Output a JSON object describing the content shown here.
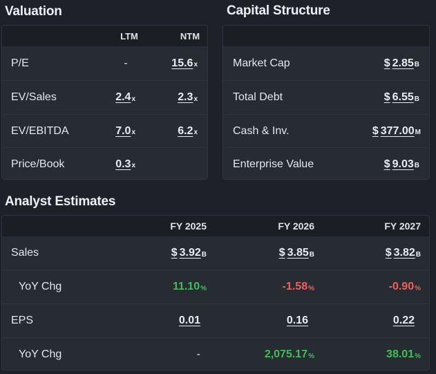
{
  "valuation": {
    "title": "Valuation",
    "col_ltm": "LTM",
    "col_ntm": "NTM",
    "rows": [
      {
        "label": "P/E",
        "ltm": "-",
        "ltm_suffix": "",
        "ntm": "15.6",
        "ntm_suffix": "x"
      },
      {
        "label": "EV/Sales",
        "ltm": "2.4",
        "ltm_suffix": "x",
        "ntm": "2.3",
        "ntm_suffix": "x"
      },
      {
        "label": "EV/EBITDA",
        "ltm": "7.0",
        "ltm_suffix": "x",
        "ntm": "6.2",
        "ntm_suffix": "x"
      },
      {
        "label": "Price/Book",
        "ltm": "0.3",
        "ltm_suffix": "x",
        "ntm": "",
        "ntm_suffix": ""
      }
    ]
  },
  "capital": {
    "title": "Capital Structure",
    "rows": [
      {
        "label": "Market Cap",
        "currency": "$",
        "value": "2.85",
        "suffix": "B"
      },
      {
        "label": "Total Debt",
        "currency": "$",
        "value": "6.55",
        "suffix": "B"
      },
      {
        "label": "Cash & Inv.",
        "currency": "$",
        "value": "377.00",
        "suffix": "M"
      },
      {
        "label": "Enterprise Value",
        "currency": "$",
        "value": "9.03",
        "suffix": "B"
      }
    ]
  },
  "analyst": {
    "title": "Analyst Estimates",
    "cols": [
      "FY 2025",
      "FY 2026",
      "FY 2027"
    ],
    "sales_label": "Sales",
    "sales": [
      {
        "currency": "$",
        "value": "3.92",
        "suffix": "B"
      },
      {
        "currency": "$",
        "value": "3.85",
        "suffix": "B"
      },
      {
        "currency": "$",
        "value": "3.82",
        "suffix": "B"
      }
    ],
    "sales_yoy_label": "YoY Chg",
    "sales_yoy": [
      {
        "value": "11.10",
        "suffix": "%",
        "tone": "positive"
      },
      {
        "value": "-1.58",
        "suffix": "%",
        "tone": "negative"
      },
      {
        "value": "-0.90",
        "suffix": "%",
        "tone": "negative"
      }
    ],
    "eps_label": "EPS",
    "eps": [
      "0.01",
      "0.16",
      "0.22"
    ],
    "eps_yoy_label": "YoY Chg",
    "eps_yoy": [
      {
        "value": "-",
        "suffix": "",
        "tone": "neutral"
      },
      {
        "value": "2,075.17",
        "suffix": "%",
        "tone": "positive"
      },
      {
        "value": "38.01",
        "suffix": "%",
        "tone": "positive"
      }
    ]
  },
  "colors": {
    "positive": "#3fbf55",
    "negative": "#f0605a",
    "background": "#1e2228",
    "panel": "#272c33"
  }
}
